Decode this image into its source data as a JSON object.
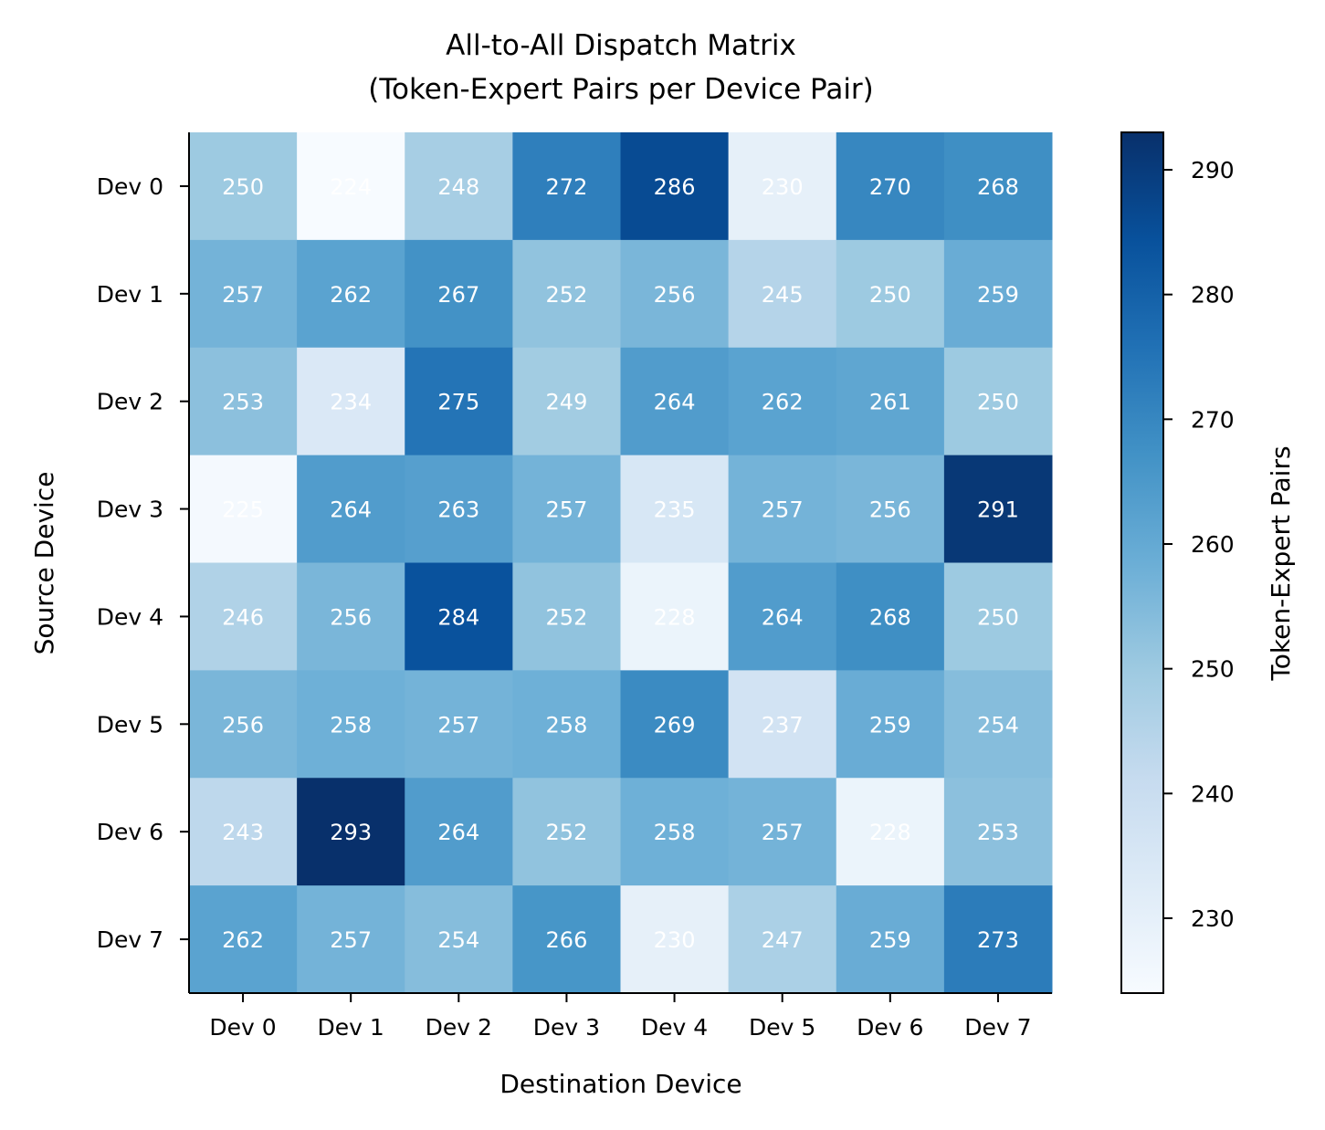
{
  "chart_data": {
    "type": "heatmap",
    "title": [
      "All-to-All Dispatch Matrix",
      "(Token-Expert Pairs per Device Pair)"
    ],
    "xlabel": "Destination Device",
    "ylabel": "Source Device",
    "x_categories": [
      "Dev 0",
      "Dev 1",
      "Dev 2",
      "Dev 3",
      "Dev 4",
      "Dev 5",
      "Dev 6",
      "Dev 7"
    ],
    "y_categories": [
      "Dev 0",
      "Dev 1",
      "Dev 2",
      "Dev 3",
      "Dev 4",
      "Dev 5",
      "Dev 6",
      "Dev 7"
    ],
    "values": [
      [
        250,
        224,
        248,
        272,
        286,
        230,
        270,
        268
      ],
      [
        257,
        262,
        267,
        252,
        256,
        245,
        250,
        259
      ],
      [
        253,
        234,
        275,
        249,
        264,
        262,
        261,
        250
      ],
      [
        225,
        264,
        263,
        257,
        235,
        257,
        256,
        291
      ],
      [
        246,
        256,
        284,
        252,
        228,
        264,
        268,
        250
      ],
      [
        256,
        258,
        257,
        258,
        269,
        237,
        259,
        254
      ],
      [
        243,
        293,
        264,
        252,
        258,
        257,
        228,
        253
      ],
      [
        262,
        257,
        254,
        266,
        230,
        247,
        259,
        273
      ]
    ],
    "colormap": "Blues",
    "colormap_stops": [
      "#f7fbff",
      "#deebf7",
      "#c6dbef",
      "#9ecae1",
      "#6baed6",
      "#4292c6",
      "#2171b5",
      "#08519c",
      "#08306b"
    ],
    "annotation_color": "#ffffff",
    "colorbar": {
      "label": "Token-Expert Pairs",
      "range": [
        224,
        293
      ],
      "ticks": [
        "230",
        "240",
        "250",
        "260",
        "270",
        "280",
        "290"
      ]
    },
    "grid": false
  }
}
